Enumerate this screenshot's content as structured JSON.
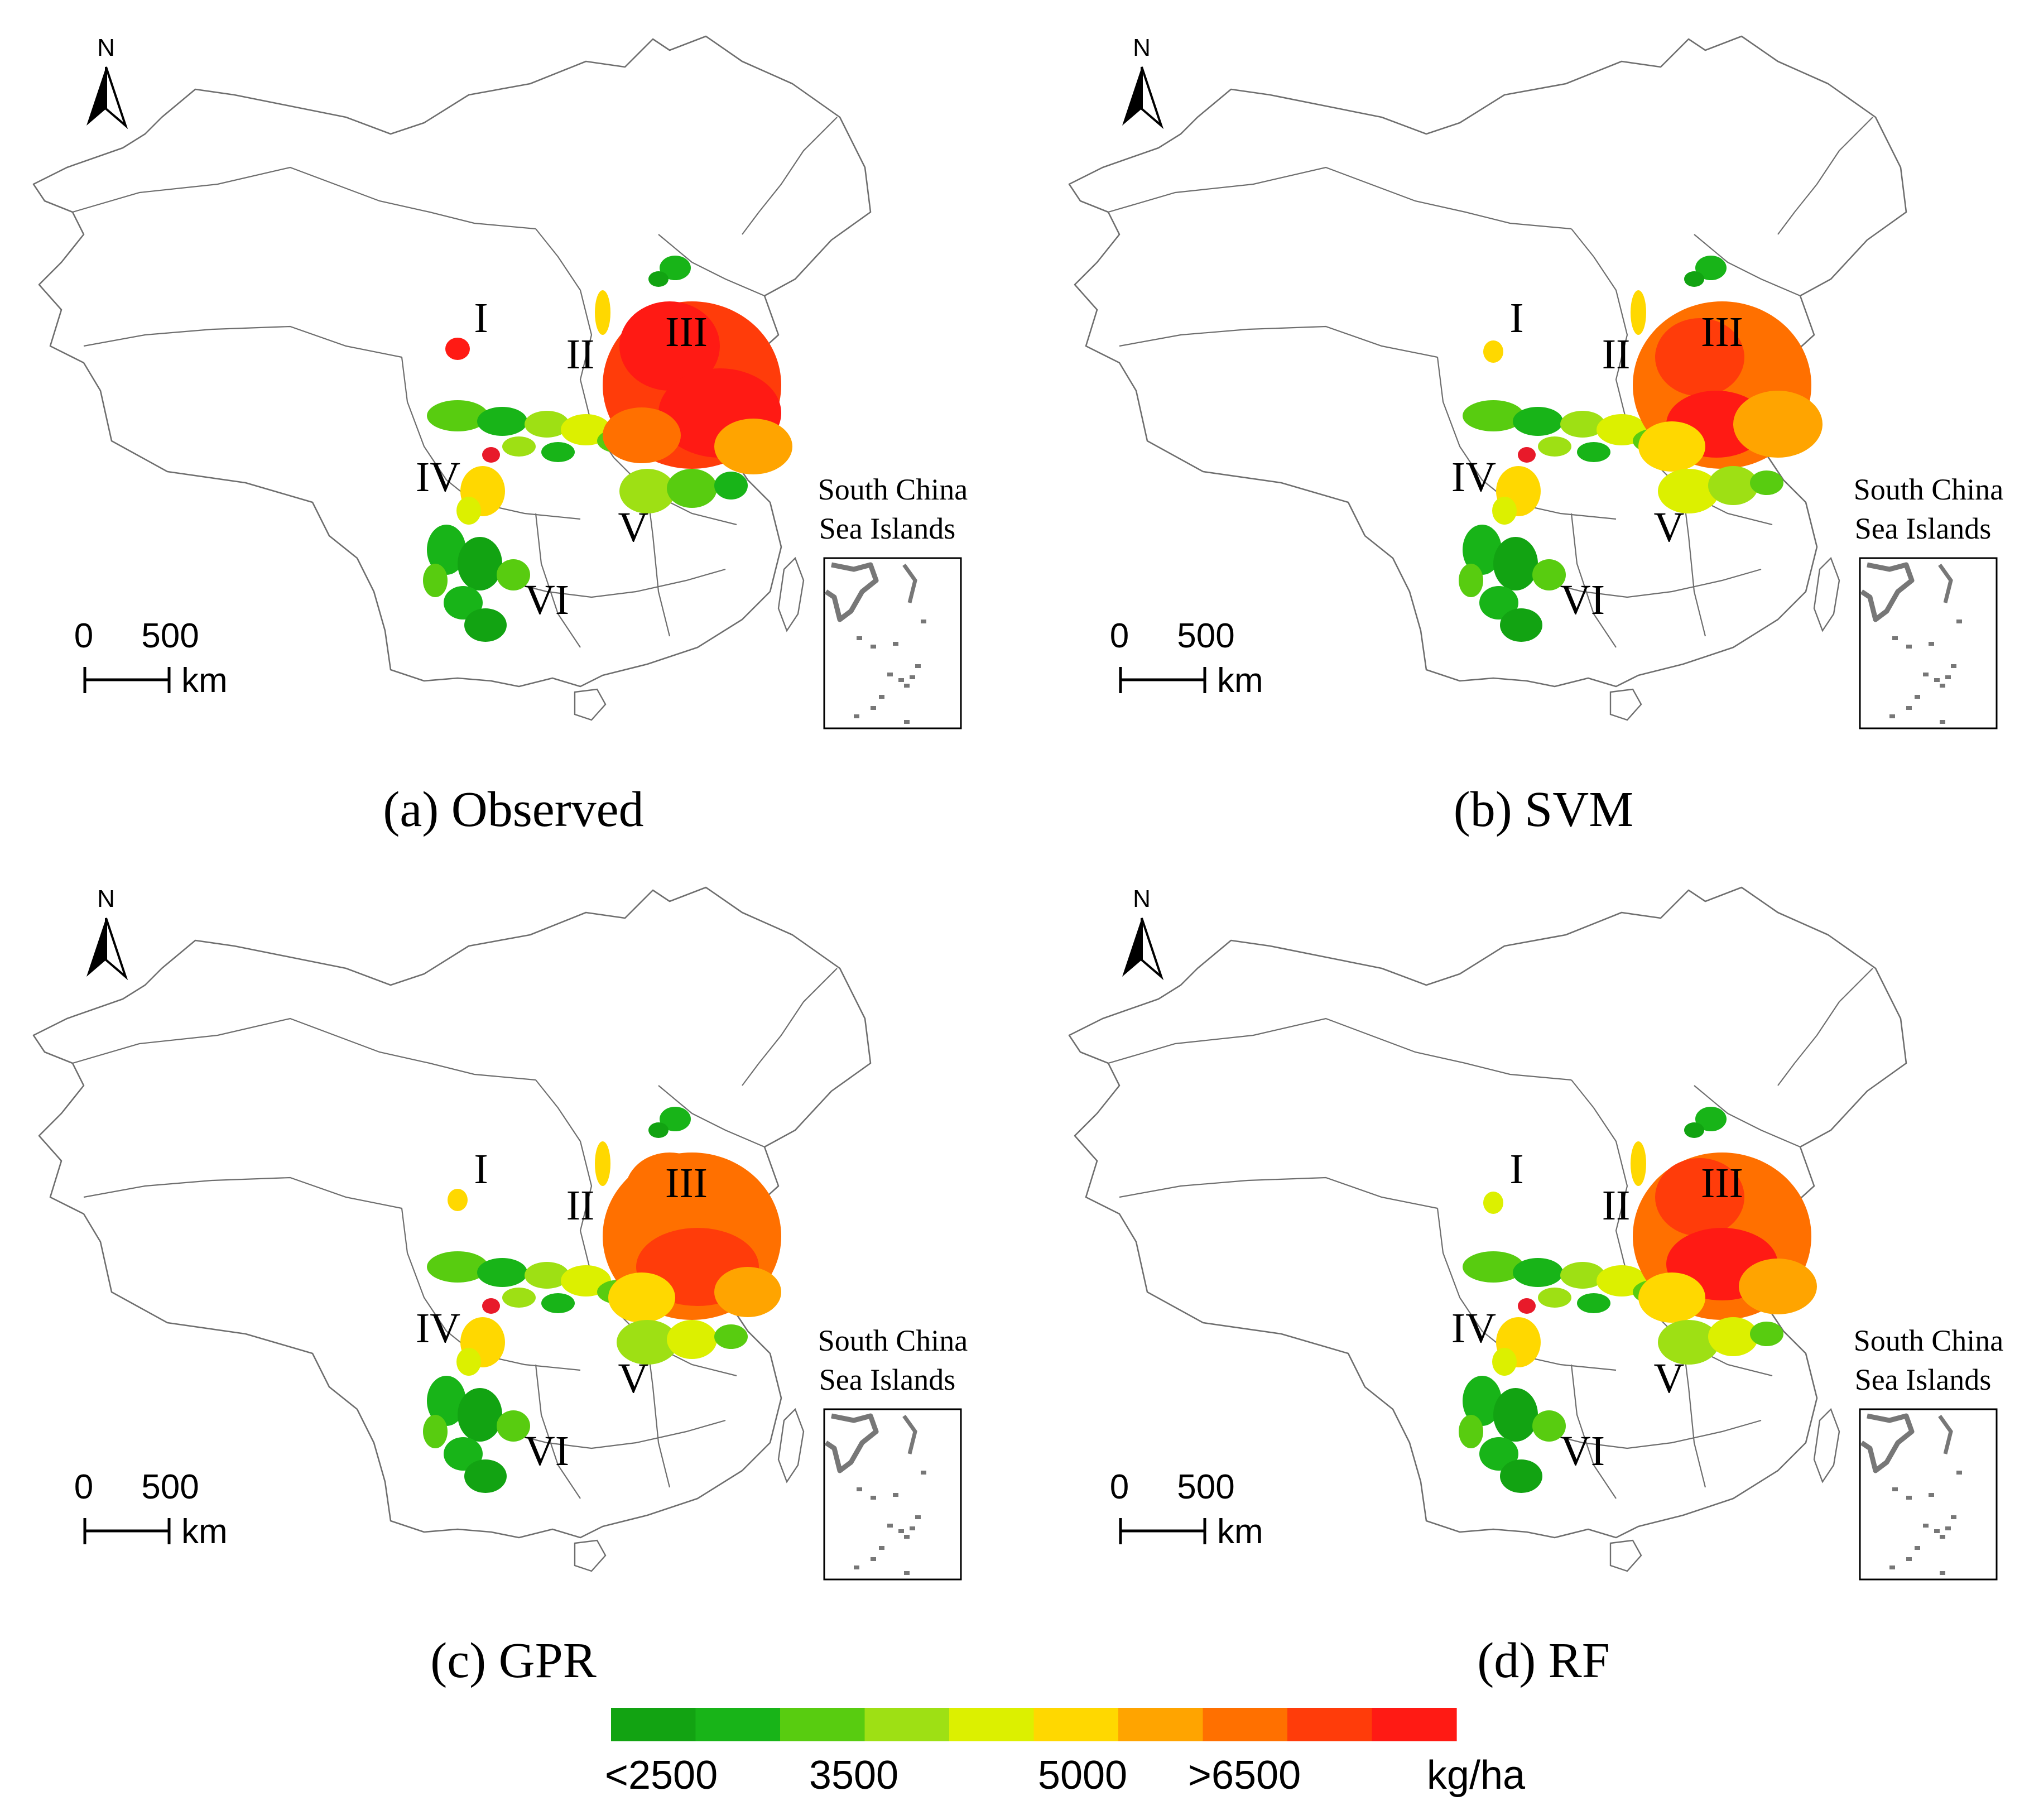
{
  "panels": [
    {
      "key": "a",
      "caption": "(a) Observed"
    },
    {
      "key": "b",
      "caption": "(b) SVM"
    },
    {
      "key": "c",
      "caption": "(c) GPR"
    },
    {
      "key": "d",
      "caption": "(d) RF"
    }
  ],
  "north_label": "N",
  "scale_bar": {
    "zero": "0",
    "value": "500",
    "unit": "km"
  },
  "inset": {
    "line1": "South China",
    "line2": "Sea Islands"
  },
  "regions": [
    "I",
    "II",
    "III",
    "IV",
    "V",
    "VI"
  ],
  "legend": {
    "colors": [
      "#12a312",
      "#18b418",
      "#58cc10",
      "#9ee014",
      "#dcf000",
      "#ffd800",
      "#ffa400",
      "#ff7000",
      "#ff3c0a",
      "#ff1a14"
    ],
    "labels": [
      "<2500",
      "3500",
      "5000",
      ">6500"
    ],
    "unit": "kg/ha"
  }
}
